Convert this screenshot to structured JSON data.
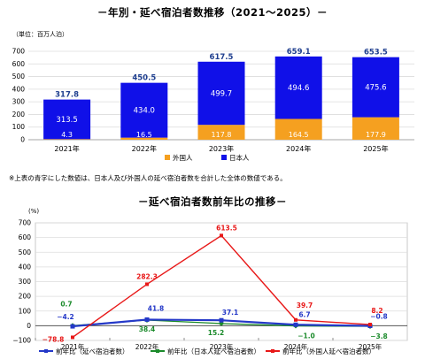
{
  "titles": {
    "chart1": "－年別・延べ宿泊者数推移（2021～2025）－",
    "chart1_unit": "（単位：百万人泊）",
    "note": "※上表の青字にした数値は、日本人及び外国人の延べ宿泊者数を合計した全体の数値である。",
    "chart2": "－延べ宿泊者数前年比の推移－",
    "chart2_unit": "(%)"
  },
  "colors": {
    "japanese": "#1010e8",
    "foreign": "#f5a020",
    "total_label": "#1f3f8f",
    "line_total": "#2438c8",
    "line_japanese": "#1a8a2a",
    "line_foreign": "#e81818"
  },
  "chart_data": [
    {
      "type": "bar",
      "stacked": true,
      "categories": [
        "2021年",
        "2022年",
        "2023年",
        "2024年",
        "2025年"
      ],
      "series": [
        {
          "name": "外国人",
          "values": [
            4.3,
            16.5,
            117.8,
            164.5,
            177.9
          ],
          "labels": [
            "4.3",
            "16.5",
            "117.8",
            "164.5",
            "177.9"
          ]
        },
        {
          "name": "日本人",
          "values": [
            313.5,
            434.0,
            499.7,
            494.6,
            475.6
          ],
          "labels": [
            "313.5",
            "434.0",
            "499.7",
            "494.6",
            "475.6"
          ]
        }
      ],
      "totals": [
        317.8,
        450.5,
        617.5,
        659.1,
        653.5
      ],
      "total_labels": [
        "317.8",
        "450.5",
        "617.5",
        "659.1",
        "653.5"
      ],
      "ylim": [
        0,
        700
      ],
      "yticks": [
        "0",
        "100",
        "200",
        "300",
        "400",
        "500",
        "600",
        "700"
      ],
      "ytick_values": [
        0,
        100,
        200,
        300,
        400,
        500,
        600,
        700
      ],
      "grid": true,
      "legend": "bottom"
    },
    {
      "type": "line",
      "categories": [
        "2021年",
        "2022年",
        "2023年",
        "2024年",
        "2025年"
      ],
      "series": [
        {
          "name": "前年比（延べ宿泊者数）",
          "values": [
            -4.2,
            41.8,
            37.1,
            6.7,
            -0.8
          ],
          "labels": [
            "−4.2",
            "41.8",
            "37.1",
            "6.7",
            "−0.8"
          ]
        },
        {
          "name": "前年比（日本人延べ宿泊者数）",
          "values": [
            0.7,
            38.4,
            15.2,
            -1.0,
            -3.8
          ],
          "labels": [
            "0.7",
            "38.4",
            "15.2",
            "−1.0",
            "−3.8"
          ]
        },
        {
          "name": "前年比（外国人延べ宿泊者数）",
          "values": [
            -78.8,
            282.3,
            613.5,
            39.7,
            8.2
          ],
          "labels": [
            "−78.8",
            "282.3",
            "613.5",
            "39.7",
            "8.2"
          ]
        }
      ],
      "ylim": [
        -100,
        700
      ],
      "yticks": [
        "−100",
        "0",
        "100",
        "200",
        "300",
        "400",
        "500",
        "600",
        "700"
      ],
      "ytick_values": [
        -100,
        0,
        100,
        200,
        300,
        400,
        500,
        600,
        700
      ],
      "grid": true,
      "legend": "bottom"
    }
  ]
}
